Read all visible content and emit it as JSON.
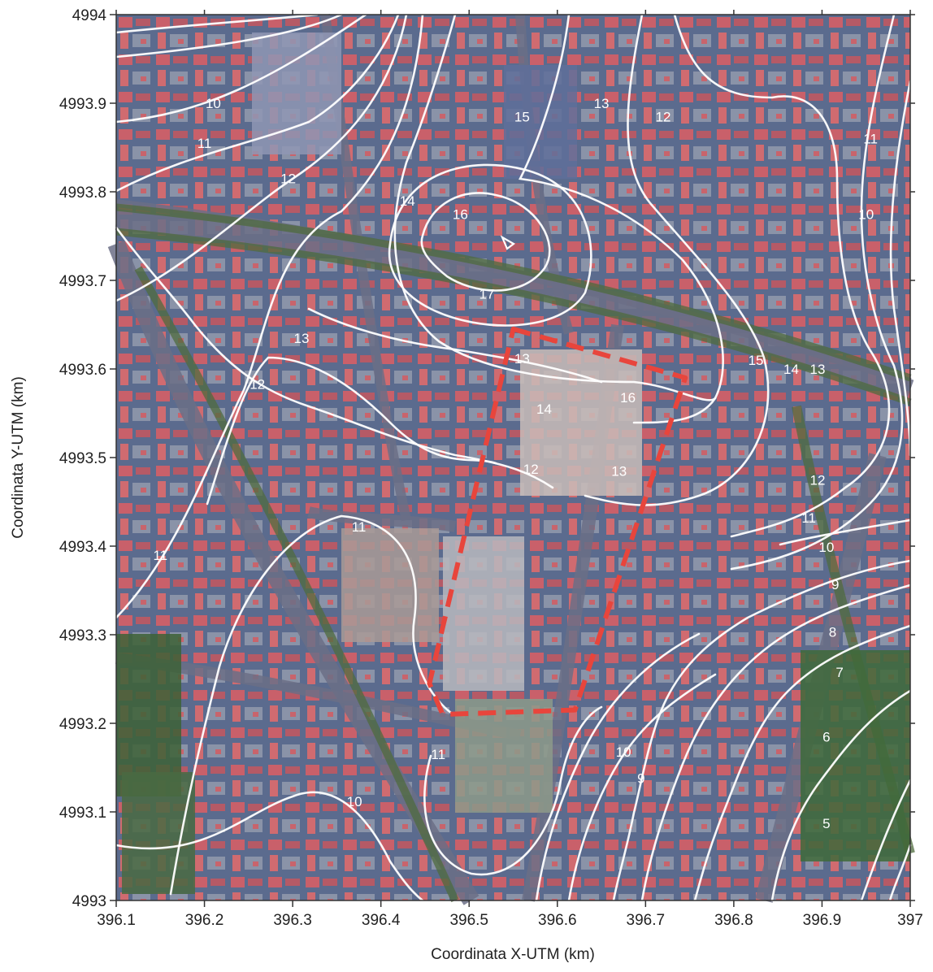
{
  "map": {
    "x_axis": {
      "title": "Coordinata X-UTM (km)",
      "range": [
        396.1,
        397
      ],
      "ticks": [
        "396.1",
        "396.2",
        "396.3",
        "396.4",
        "396.5",
        "396.6",
        "396.7",
        "396.8",
        "396.9",
        "397"
      ]
    },
    "y_axis": {
      "title": "Coordinata Y-UTM (km)",
      "range": [
        4993,
        4994
      ],
      "ticks": [
        "4993",
        "4993.1",
        "4993.2",
        "4993.3",
        "4993.4",
        "4993.5",
        "4993.6",
        "4993.7",
        "4993.8",
        "4993.9",
        "4994"
      ]
    },
    "basemap": "aerial-photo-urban",
    "contour_color": "#ffffff",
    "site_boundary_color": "#e8453c",
    "contour_labels": [
      {
        "text": "10",
        "x": 396.21,
        "y": 4993.9
      },
      {
        "text": "11",
        "x": 396.2,
        "y": 4993.855
      },
      {
        "text": "12",
        "x": 396.295,
        "y": 4993.815
      },
      {
        "text": "14",
        "x": 396.43,
        "y": 4993.79
      },
      {
        "text": "16",
        "x": 396.49,
        "y": 4993.775
      },
      {
        "text": "15",
        "x": 396.56,
        "y": 4993.885
      },
      {
        "text": "13",
        "x": 396.65,
        "y": 4993.9
      },
      {
        "text": "12",
        "x": 396.72,
        "y": 4993.885
      },
      {
        "text": "11",
        "x": 396.955,
        "y": 4993.86
      },
      {
        "text": "10",
        "x": 396.95,
        "y": 4993.775
      },
      {
        "text": "17",
        "x": 396.52,
        "y": 4993.685
      },
      {
        "text": "13",
        "x": 396.31,
        "y": 4993.635
      },
      {
        "text": "12",
        "x": 396.26,
        "y": 4993.583
      },
      {
        "text": "13",
        "x": 396.56,
        "y": 4993.612
      },
      {
        "text": "14",
        "x": 396.585,
        "y": 4993.555
      },
      {
        "text": "16",
        "x": 396.68,
        "y": 4993.568
      },
      {
        "text": "12",
        "x": 396.57,
        "y": 4993.487
      },
      {
        "text": "13",
        "x": 396.67,
        "y": 4993.485
      },
      {
        "text": "15",
        "x": 396.825,
        "y": 4993.61
      },
      {
        "text": "14",
        "x": 396.865,
        "y": 4993.6
      },
      {
        "text": "13",
        "x": 396.895,
        "y": 4993.6
      },
      {
        "text": "12",
        "x": 396.895,
        "y": 4993.475
      },
      {
        "text": "11",
        "x": 396.885,
        "y": 4993.432
      },
      {
        "text": "10",
        "x": 396.905,
        "y": 4993.399
      },
      {
        "text": "9",
        "x": 396.915,
        "y": 4993.357
      },
      {
        "text": "8",
        "x": 396.912,
        "y": 4993.303
      },
      {
        "text": "7",
        "x": 396.92,
        "y": 4993.258
      },
      {
        "text": "6",
        "x": 396.905,
        "y": 4993.185
      },
      {
        "text": "5",
        "x": 396.905,
        "y": 4993.087
      },
      {
        "text": "11",
        "x": 396.15,
        "y": 4993.39
      },
      {
        "text": "11",
        "x": 396.375,
        "y": 4993.422
      },
      {
        "text": "11",
        "x": 396.465,
        "y": 4993.165
      },
      {
        "text": "10",
        "x": 396.37,
        "y": 4993.112
      },
      {
        "text": "10",
        "x": 396.675,
        "y": 4993.168
      },
      {
        "text": "9",
        "x": 396.695,
        "y": 4993.138
      }
    ]
  }
}
